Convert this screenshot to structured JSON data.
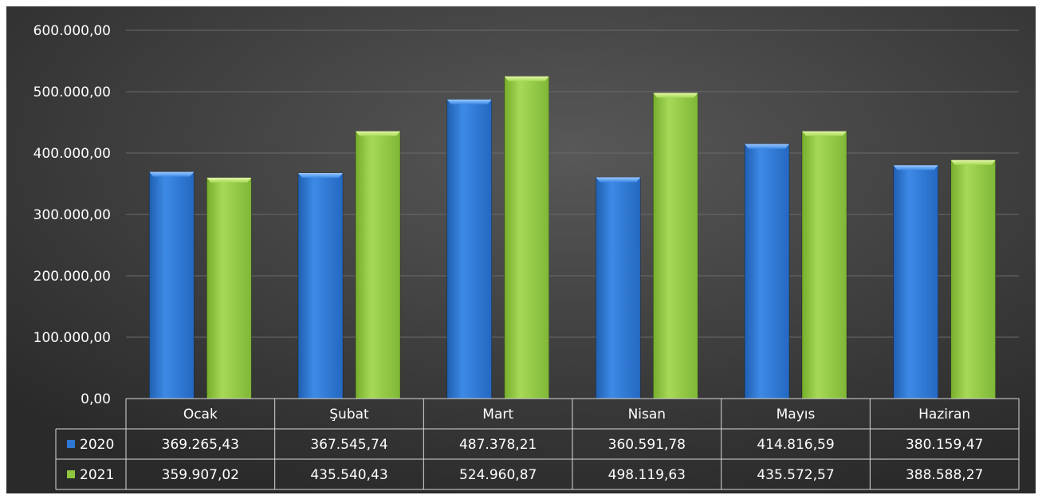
{
  "chart_data": {
    "type": "bar",
    "categories": [
      "Ocak",
      "Şubat",
      "Mart",
      "Nisan",
      "Mayıs",
      "Haziran"
    ],
    "series": [
      {
        "name": "2020",
        "color": "#2e78d4",
        "values": [
          369265.43,
          367545.74,
          487378.21,
          360591.78,
          414816.59,
          380159.47
        ],
        "labels": [
          "369.265,43",
          "367.545,74",
          "487.378,21",
          "360.591,78",
          "414.816,59",
          "380.159,47"
        ]
      },
      {
        "name": "2021",
        "color": "#8dc63f",
        "values": [
          359907.02,
          435540.43,
          524960.87,
          498119.63,
          435572.57,
          388588.27
        ],
        "labels": [
          "359.907,02",
          "435.540,43",
          "524.960,87",
          "498.119,63",
          "435.572,57",
          "388.588,27"
        ]
      }
    ],
    "ylim": [
      0,
      600000
    ],
    "y_ticks": [
      {
        "value": 0,
        "label": "0,00"
      },
      {
        "value": 100000,
        "label": "100.000,00"
      },
      {
        "value": 200000,
        "label": "200.000,00"
      },
      {
        "value": 300000,
        "label": "300.000,00"
      },
      {
        "value": 400000,
        "label": "400.000,00"
      },
      {
        "value": 500000,
        "label": "500.000,00"
      },
      {
        "value": 600000,
        "label": "600.000,00"
      }
    ],
    "grid": true,
    "legend": "data-table",
    "data_table": true,
    "background": "#3c3c3c"
  }
}
